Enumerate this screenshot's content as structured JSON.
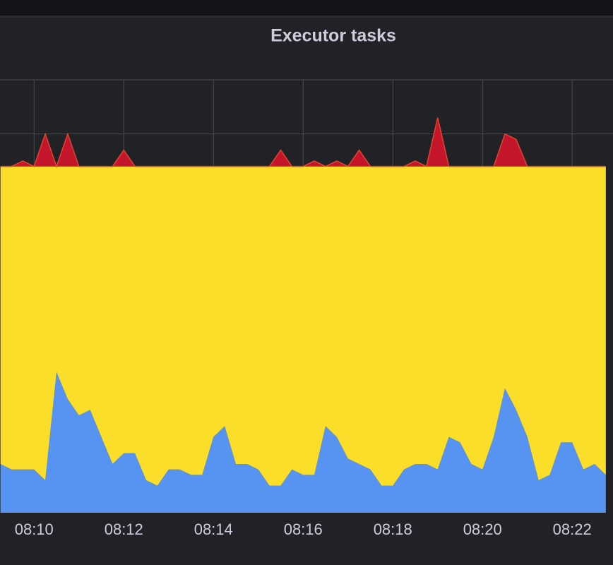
{
  "chart_data": {
    "type": "stacked-area",
    "title": "Executor tasks",
    "x": [
      9.25,
      9.5,
      9.75,
      10,
      10.25,
      10.5,
      10.75,
      11,
      11.25,
      11.5,
      11.75,
      12,
      12.25,
      12.5,
      12.75,
      13,
      13.25,
      13.5,
      13.75,
      14,
      14.25,
      14.5,
      14.75,
      15,
      15.25,
      15.5,
      15.75,
      16,
      16.25,
      16.5,
      16.75,
      17,
      17.25,
      17.5,
      17.75,
      18,
      18.25,
      18.5,
      18.75,
      19,
      19.25,
      19.5,
      19.75,
      20,
      20.25,
      20.5,
      20.75,
      21,
      21.25,
      21.5,
      21.75,
      22,
      22.25,
      22.5,
      22.75
    ],
    "series": [
      {
        "color": "#5794f2",
        "values": [
          0.9,
          0.8,
          0.8,
          0.8,
          0.6,
          2.6,
          2.1,
          1.8,
          1.9,
          1.4,
          0.9,
          1.1,
          1.1,
          0.6,
          0.5,
          0.8,
          0.8,
          0.7,
          0.7,
          1.4,
          1.6,
          0.9,
          0.9,
          0.8,
          0.5,
          0.5,
          0.8,
          0.7,
          0.7,
          1.6,
          1.4,
          1.0,
          0.9,
          0.8,
          0.5,
          0.5,
          0.8,
          0.9,
          0.9,
          0.8,
          1.4,
          1.3,
          0.9,
          0.8,
          1.4,
          2.3,
          1.9,
          1.4,
          0.6,
          0.7,
          1.3,
          1.3,
          0.8,
          0.9,
          0.7
        ]
      },
      {
        "color": "#fade2a",
        "values": [
          5.5,
          5.6,
          5.6,
          5.6,
          5.8,
          3.8,
          4.3,
          4.6,
          4.5,
          5.0,
          5.5,
          5.3,
          5.3,
          5.8,
          5.9,
          5.6,
          5.6,
          5.7,
          5.7,
          5.0,
          4.8,
          5.5,
          5.5,
          5.6,
          5.9,
          5.9,
          5.6,
          5.7,
          5.7,
          4.8,
          5.0,
          5.4,
          5.5,
          5.6,
          5.9,
          5.9,
          5.6,
          5.5,
          5.5,
          5.6,
          5.0,
          5.1,
          5.5,
          5.6,
          5.0,
          4.1,
          4.5,
          5.0,
          5.8,
          5.7,
          5.1,
          5.1,
          5.6,
          5.5,
          5.7
        ]
      },
      {
        "color": "#c4162a",
        "values": [
          0,
          0,
          0.1,
          0,
          0.6,
          0,
          0.6,
          0,
          0,
          0,
          0,
          0.3,
          0,
          0,
          0,
          0,
          0,
          0,
          0,
          0,
          0,
          0,
          0,
          0,
          0,
          0.3,
          0,
          0,
          0.1,
          0,
          0.1,
          0,
          0.3,
          0,
          0,
          0,
          0,
          0.1,
          0,
          0.9,
          0,
          0,
          0,
          0,
          0,
          0.6,
          0.5,
          0,
          0,
          0,
          0,
          0,
          0,
          0,
          0
        ]
      }
    ],
    "xlim": [
      9.24,
      22.91
    ],
    "xticks": [
      {
        "value": 10,
        "label": "08:10"
      },
      {
        "value": 12,
        "label": "08:12"
      },
      {
        "value": 14,
        "label": "08:14"
      },
      {
        "value": 16,
        "label": "08:16"
      },
      {
        "value": 18,
        "label": "08:18"
      },
      {
        "value": 20,
        "label": "08:20"
      },
      {
        "value": 22,
        "label": "08:22"
      }
    ],
    "ylim": [
      0,
      8
    ],
    "yticks": [
      7,
      8
    ],
    "grid": true
  }
}
